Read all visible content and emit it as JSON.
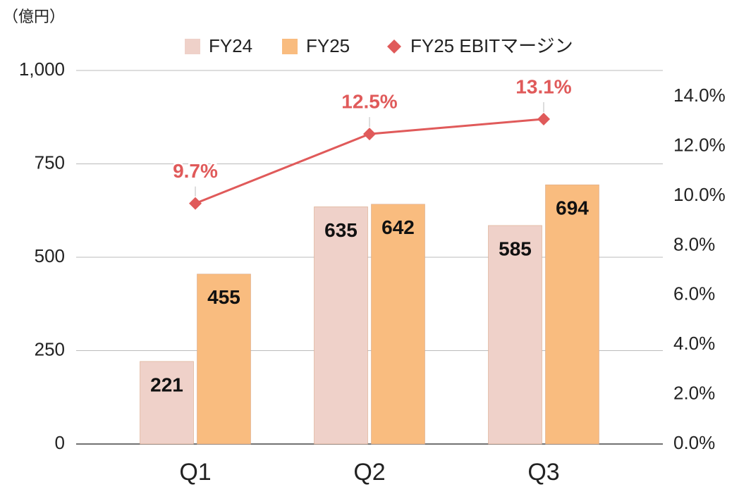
{
  "chart_data": {
    "type": "bar_line",
    "unit_label": "（億円）",
    "categories": [
      "Q1",
      "Q2",
      "Q3"
    ],
    "series": [
      {
        "name": "FY24",
        "color": "#efd1c9",
        "values": [
          221,
          635,
          585
        ]
      },
      {
        "name": "FY25",
        "color": "#f9bc7f",
        "values": [
          455,
          642,
          694
        ]
      },
      {
        "name": "FY25 EBITマージン",
        "color": "#e05a5a",
        "type": "line",
        "axis": "y2",
        "values": [
          9.7,
          12.5,
          13.1
        ],
        "value_labels": [
          "9.7%",
          "12.5%",
          "13.1%"
        ]
      }
    ],
    "ylim": [
      0,
      1000
    ],
    "yticks": [
      0,
      250,
      500,
      750,
      {
        "value": 1000,
        "label": "1,000"
      }
    ],
    "y2lim": [
      0,
      15.06
    ],
    "y2ticks": [
      {
        "value": 0,
        "label": "0.0%"
      },
      {
        "value": 2,
        "label": "2.0%"
      },
      {
        "value": 4,
        "label": "4.0%"
      },
      {
        "value": 6,
        "label": "6.0%"
      },
      {
        "value": 8,
        "label": "8.0%"
      },
      {
        "value": 10,
        "label": "10.0%"
      },
      {
        "value": 12,
        "label": "12.0%"
      },
      {
        "value": 14,
        "label": "14.0%"
      }
    ],
    "grid": true,
    "legend": "top"
  }
}
